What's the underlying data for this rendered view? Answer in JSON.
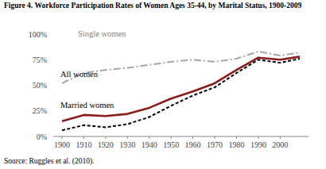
{
  "chart_data": {
    "type": "line",
    "title": "Figure 4. Workforce Participation Rates of Women Ages 35-44, by Marital Status, 1900-2009",
    "source": "Source: Ruggles et al. (2010).",
    "x": [
      1900,
      1910,
      1920,
      1930,
      1940,
      1950,
      1960,
      1970,
      1980,
      1990,
      2000,
      2009
    ],
    "series": [
      {
        "name": "Single women",
        "color": "#a6a6a6",
        "line_style": "dash-dot",
        "values": [
          52,
          62,
          65,
          67,
          70,
          73,
          75,
          73,
          76,
          83,
          79,
          82
        ]
      },
      {
        "name": "All women",
        "color": "#8b1c1c",
        "line_style": "solid",
        "values": [
          15,
          21,
          20,
          22,
          28,
          37,
          44,
          52,
          65,
          77,
          75,
          78
        ]
      },
      {
        "name": "Married women",
        "color": "#000000",
        "line_style": "dashed",
        "values": [
          6,
          11,
          9,
          12,
          19,
          30,
          40,
          48,
          62,
          75,
          72,
          76
        ]
      }
    ],
    "xlim": [
      1896,
      2013
    ],
    "xticks": [
      1900,
      1910,
      1920,
      1930,
      1940,
      1950,
      1960,
      1970,
      1980,
      1990,
      2000
    ],
    "ylim": [
      0,
      100
    ],
    "yticks": [
      {
        "value": 0,
        "label": "0%"
      },
      {
        "value": 25,
        "label": "25%"
      },
      {
        "value": 50,
        "label": "50%"
      },
      {
        "value": 75,
        "label": "75%"
      },
      {
        "value": 100,
        "label": "100%"
      }
    ],
    "grid": false
  }
}
